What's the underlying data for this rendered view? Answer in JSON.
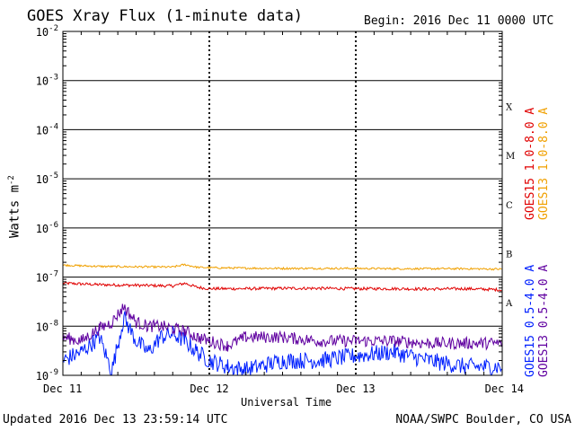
{
  "header": {
    "title": "GOES Xray Flux (1-minute data)",
    "begin": "Begin:  2016 Dec 11 0000 UTC"
  },
  "footer": {
    "updated": "Updated 2016 Dec 13 23:59:14 UTC",
    "credit": "NOAA/SWPC Boulder, CO USA"
  },
  "chart_data": {
    "type": "line",
    "title": "GOES Xray Flux (1-minute data)",
    "xlabel": "Universal Time",
    "ylabel": "Watts m",
    "ylabel_sup": "-2",
    "y_scale": "log",
    "ylim": [
      1e-09,
      0.01
    ],
    "y_tick_labels": [
      {
        "value": 0.01,
        "base": "10",
        "exp": "-2"
      },
      {
        "value": 0.001,
        "base": "10",
        "exp": "-3"
      },
      {
        "value": 0.0001,
        "base": "10",
        "exp": "-4"
      },
      {
        "value": 1e-05,
        "base": "10",
        "exp": "-5"
      },
      {
        "value": 1e-06,
        "base": "10",
        "exp": "-6"
      },
      {
        "value": 1e-07,
        "base": "10",
        "exp": "-7"
      },
      {
        "value": 1e-08,
        "base": "10",
        "exp": "-8"
      },
      {
        "value": 1e-09,
        "base": "10",
        "exp": "-9"
      }
    ],
    "xlim": [
      "2016-12-11",
      "2016-12-14"
    ],
    "x_ticks": [
      {
        "value": "2016-12-11",
        "label": "Dec 11"
      },
      {
        "value": "2016-12-12",
        "label": "Dec 12"
      },
      {
        "value": "2016-12-13",
        "label": "Dec 13"
      },
      {
        "value": "2016-12-14",
        "label": "Dec 14"
      }
    ],
    "flare_classes": [
      {
        "label": "X",
        "value": 0.0003
      },
      {
        "label": "M",
        "value": 3e-05
      },
      {
        "label": "C",
        "value": 3e-06
      },
      {
        "label": "B",
        "value": 3e-07
      },
      {
        "label": "A",
        "value": 3e-08
      }
    ],
    "grid": true,
    "legend_placement": "right",
    "series": [
      {
        "name": "GOES15 1.0-8.0 A",
        "color": "#e00000",
        "x": [
          "2016-12-11 00:00",
          "2016-12-11 06:00",
          "2016-12-11 12:00",
          "2016-12-11 18:00",
          "2016-12-11 20:00",
          "2016-12-11 22:00",
          "2016-12-12 00:00",
          "2016-12-12 06:00",
          "2016-12-12 12:00",
          "2016-12-12 18:00",
          "2016-12-13 00:00",
          "2016-12-13 06:00",
          "2016-12-13 12:00",
          "2016-12-13 18:00",
          "2016-12-14 00:00"
        ],
        "y": [
          7.5e-08,
          7e-08,
          6.8e-08,
          6.6e-08,
          7.5e-08,
          6.2e-08,
          5.8e-08,
          5.8e-08,
          5.9e-08,
          5.9e-08,
          5.8e-08,
          5.8e-08,
          5.7e-08,
          5.8e-08,
          5.5e-08
        ]
      },
      {
        "name": "GOES13 1.0-8.0 A",
        "color": "#f0a000",
        "x": [
          "2016-12-11 00:00",
          "2016-12-11 06:00",
          "2016-12-11 12:00",
          "2016-12-11 18:00",
          "2016-12-11 20:00",
          "2016-12-11 22:00",
          "2016-12-12 00:00",
          "2016-12-12 06:00",
          "2016-12-12 12:00",
          "2016-12-12 18:00",
          "2016-12-13 00:00",
          "2016-12-13 06:00",
          "2016-12-13 12:00",
          "2016-12-13 18:00",
          "2016-12-14 00:00"
        ],
        "y": [
          1.75e-07,
          1.65e-07,
          1.62e-07,
          1.6e-07,
          1.8e-07,
          1.58e-07,
          1.55e-07,
          1.52e-07,
          1.5e-07,
          1.5e-07,
          1.5e-07,
          1.48e-07,
          1.48e-07,
          1.48e-07,
          1.45e-07
        ]
      },
      {
        "name": "GOES15 0.5-4.0 A",
        "color": "#0020ff",
        "x": [
          "2016-12-11 00:00",
          "2016-12-11 03:00",
          "2016-12-11 06:00",
          "2016-12-11 08:00",
          "2016-12-11 10:00",
          "2016-12-11 12:00",
          "2016-12-11 14:00",
          "2016-12-11 16:00",
          "2016-12-11 18:00",
          "2016-12-11 20:00",
          "2016-12-11 22:00",
          "2016-12-12 00:00",
          "2016-12-12 03:00",
          "2016-12-12 06:00",
          "2016-12-12 12:00",
          "2016-12-12 18:00",
          "2016-12-13 00:00",
          "2016-12-13 06:00",
          "2016-12-13 12:00",
          "2016-12-13 18:00",
          "2016-12-14 00:00"
        ],
        "y": [
          2e-09,
          3e-09,
          6e-09,
          1.2e-09,
          1.5e-08,
          5e-09,
          3e-09,
          6e-09,
          7e-09,
          5e-09,
          3e-09,
          2e-09,
          1.5e-09,
          1.3e-09,
          2e-09,
          2e-09,
          2.5e-09,
          3e-09,
          2e-09,
          1.5e-09,
          1.5e-09
        ]
      },
      {
        "name": "GOES13 0.5-4.0 A",
        "color": "#6000a0",
        "x": [
          "2016-12-11 00:00",
          "2016-12-11 03:00",
          "2016-12-11 06:00",
          "2016-12-11 08:00",
          "2016-12-11 10:00",
          "2016-12-11 12:00",
          "2016-12-11 14:00",
          "2016-12-11 16:00",
          "2016-12-11 18:00",
          "2016-12-11 20:00",
          "2016-12-11 22:00",
          "2016-12-12 00:00",
          "2016-12-12 03:00",
          "2016-12-12 06:00",
          "2016-12-12 12:00",
          "2016-12-12 18:00",
          "2016-12-13 00:00",
          "2016-12-13 06:00",
          "2016-12-13 12:00",
          "2016-12-13 18:00",
          "2016-12-14 00:00"
        ],
        "y": [
          6e-09,
          5e-09,
          9e-09,
          1.2e-08,
          2.5e-08,
          1.2e-08,
          1e-08,
          1e-08,
          9e-09,
          8e-09,
          6e-09,
          5e-09,
          4e-09,
          6e-09,
          6e-09,
          5e-09,
          5e-09,
          5e-09,
          4.5e-09,
          4.5e-09,
          4.5e-09
        ]
      }
    ]
  }
}
